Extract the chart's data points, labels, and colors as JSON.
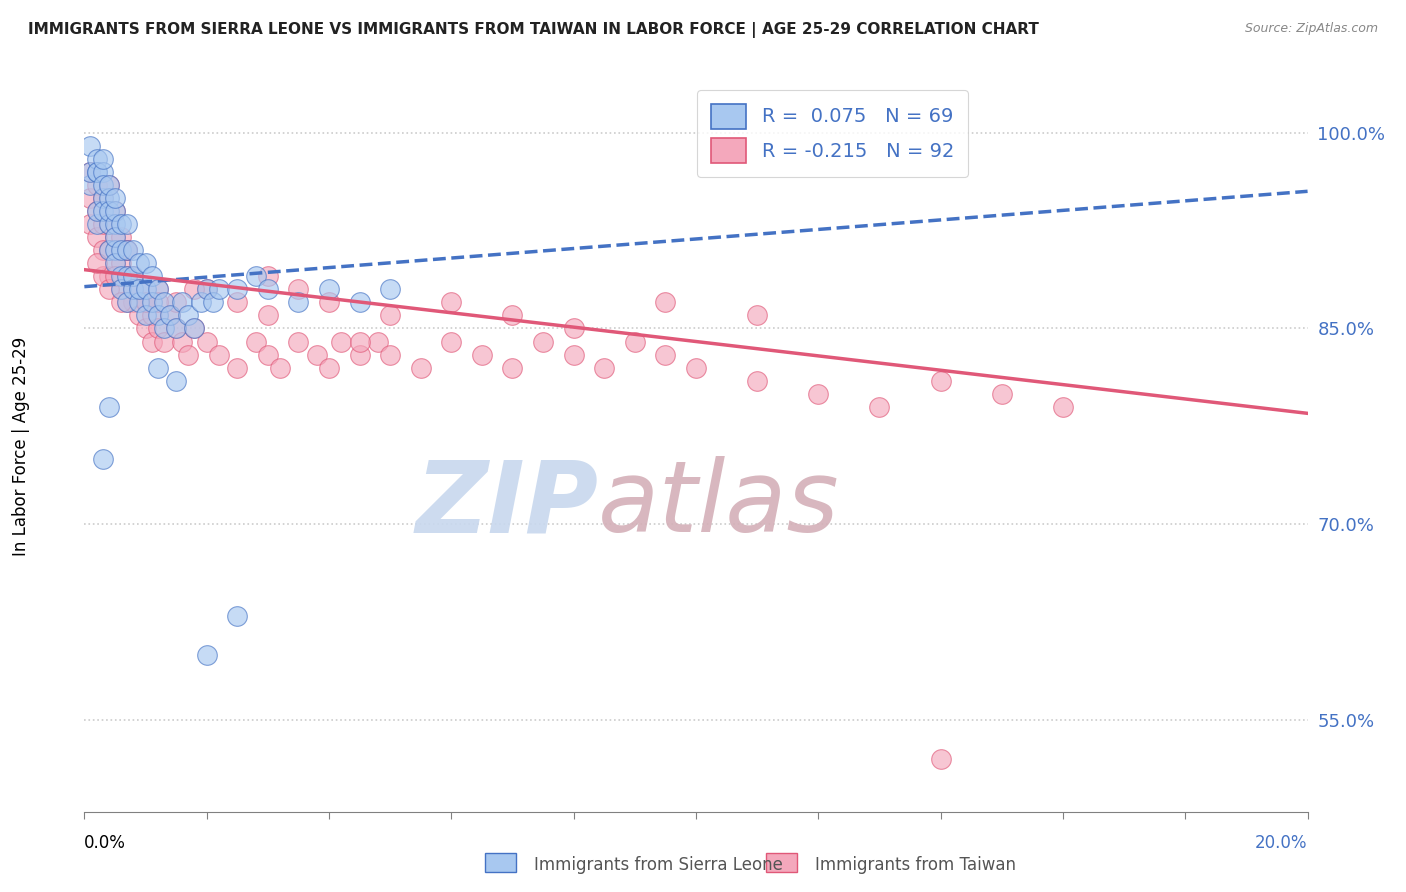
{
  "title": "IMMIGRANTS FROM SIERRA LEONE VS IMMIGRANTS FROM TAIWAN IN LABOR FORCE | AGE 25-29 CORRELATION CHART",
  "source": "Source: ZipAtlas.com",
  "ylabel": "In Labor Force | Age 25-29",
  "yticks": [
    0.55,
    0.7,
    0.85,
    1.0
  ],
  "ytick_labels": [
    "55.0%",
    "70.0%",
    "85.0%",
    "100.0%"
  ],
  "xlim": [
    0.0,
    0.2
  ],
  "ylim": [
    0.48,
    1.04
  ],
  "legend_R_blue": "R =  0.075",
  "legend_N_blue": "N = 69",
  "legend_R_pink": "R = -0.215",
  "legend_N_pink": "N = 92",
  "color_blue": "#a8c8f0",
  "color_pink": "#f4a8bc",
  "color_trendline_blue": "#4472c4",
  "color_trendline_pink": "#e05878",
  "watermark_zip_color": "#c8d8ee",
  "watermark_atlas_color": "#d4b0b8",
  "blue_label": "Immigrants from Sierra Leone",
  "pink_label": "Immigrants from Taiwan",
  "trendline_blue_x0": 0.0,
  "trendline_blue_y0": 0.882,
  "trendline_blue_x1": 0.2,
  "trendline_blue_y1": 0.955,
  "trendline_pink_x0": 0.0,
  "trendline_pink_y0": 0.895,
  "trendline_pink_x1": 0.2,
  "trendline_pink_y1": 0.785,
  "blue_scatter_x": [
    0.001,
    0.001,
    0.001,
    0.002,
    0.002,
    0.002,
    0.002,
    0.002,
    0.003,
    0.003,
    0.003,
    0.003,
    0.003,
    0.004,
    0.004,
    0.004,
    0.004,
    0.004,
    0.005,
    0.005,
    0.005,
    0.005,
    0.005,
    0.005,
    0.006,
    0.006,
    0.006,
    0.006,
    0.007,
    0.007,
    0.007,
    0.007,
    0.008,
    0.008,
    0.008,
    0.009,
    0.009,
    0.009,
    0.01,
    0.01,
    0.01,
    0.011,
    0.011,
    0.012,
    0.012,
    0.013,
    0.013,
    0.014,
    0.015,
    0.016,
    0.017,
    0.018,
    0.019,
    0.02,
    0.021,
    0.022,
    0.025,
    0.028,
    0.03,
    0.035,
    0.04,
    0.045,
    0.05,
    0.02,
    0.025,
    0.003,
    0.004,
    0.015,
    0.012
  ],
  "blue_scatter_y": [
    0.96,
    0.97,
    0.99,
    0.97,
    0.98,
    0.93,
    0.94,
    0.97,
    0.97,
    0.98,
    0.95,
    0.96,
    0.94,
    0.93,
    0.95,
    0.91,
    0.94,
    0.96,
    0.93,
    0.94,
    0.91,
    0.92,
    0.95,
    0.9,
    0.89,
    0.91,
    0.93,
    0.88,
    0.87,
    0.89,
    0.91,
    0.93,
    0.88,
    0.89,
    0.91,
    0.87,
    0.88,
    0.9,
    0.86,
    0.88,
    0.9,
    0.87,
    0.89,
    0.86,
    0.88,
    0.85,
    0.87,
    0.86,
    0.85,
    0.87,
    0.86,
    0.85,
    0.87,
    0.88,
    0.87,
    0.88,
    0.88,
    0.89,
    0.88,
    0.87,
    0.88,
    0.87,
    0.88,
    0.6,
    0.63,
    0.75,
    0.79,
    0.81,
    0.82
  ],
  "pink_scatter_x": [
    0.001,
    0.001,
    0.001,
    0.002,
    0.002,
    0.002,
    0.003,
    0.003,
    0.003,
    0.004,
    0.004,
    0.004,
    0.004,
    0.005,
    0.005,
    0.005,
    0.006,
    0.006,
    0.006,
    0.007,
    0.007,
    0.007,
    0.008,
    0.008,
    0.009,
    0.009,
    0.01,
    0.01,
    0.011,
    0.011,
    0.012,
    0.013,
    0.014,
    0.015,
    0.016,
    0.017,
    0.018,
    0.02,
    0.022,
    0.025,
    0.028,
    0.03,
    0.032,
    0.035,
    0.038,
    0.04,
    0.042,
    0.045,
    0.048,
    0.05,
    0.055,
    0.06,
    0.065,
    0.07,
    0.075,
    0.08,
    0.085,
    0.09,
    0.095,
    0.1,
    0.11,
    0.12,
    0.13,
    0.14,
    0.15,
    0.16,
    0.003,
    0.004,
    0.006,
    0.008,
    0.01,
    0.012,
    0.015,
    0.02,
    0.025,
    0.03,
    0.035,
    0.04,
    0.05,
    0.06,
    0.07,
    0.08,
    0.095,
    0.11,
    0.002,
    0.005,
    0.007,
    0.012,
    0.018,
    0.03,
    0.14,
    0.045
  ],
  "pink_scatter_y": [
    0.95,
    0.93,
    0.97,
    0.96,
    0.94,
    0.92,
    0.95,
    0.93,
    0.91,
    0.96,
    0.93,
    0.91,
    0.89,
    0.94,
    0.92,
    0.9,
    0.92,
    0.9,
    0.88,
    0.91,
    0.89,
    0.87,
    0.89,
    0.87,
    0.88,
    0.86,
    0.87,
    0.85,
    0.86,
    0.84,
    0.85,
    0.84,
    0.86,
    0.85,
    0.84,
    0.83,
    0.85,
    0.84,
    0.83,
    0.82,
    0.84,
    0.83,
    0.82,
    0.84,
    0.83,
    0.82,
    0.84,
    0.83,
    0.84,
    0.83,
    0.82,
    0.84,
    0.83,
    0.82,
    0.84,
    0.83,
    0.82,
    0.84,
    0.83,
    0.82,
    0.81,
    0.8,
    0.79,
    0.81,
    0.8,
    0.79,
    0.89,
    0.88,
    0.87,
    0.88,
    0.87,
    0.88,
    0.87,
    0.88,
    0.87,
    0.86,
    0.88,
    0.87,
    0.86,
    0.87,
    0.86,
    0.85,
    0.87,
    0.86,
    0.9,
    0.89,
    0.91,
    0.87,
    0.88,
    0.89,
    0.52,
    0.84
  ]
}
